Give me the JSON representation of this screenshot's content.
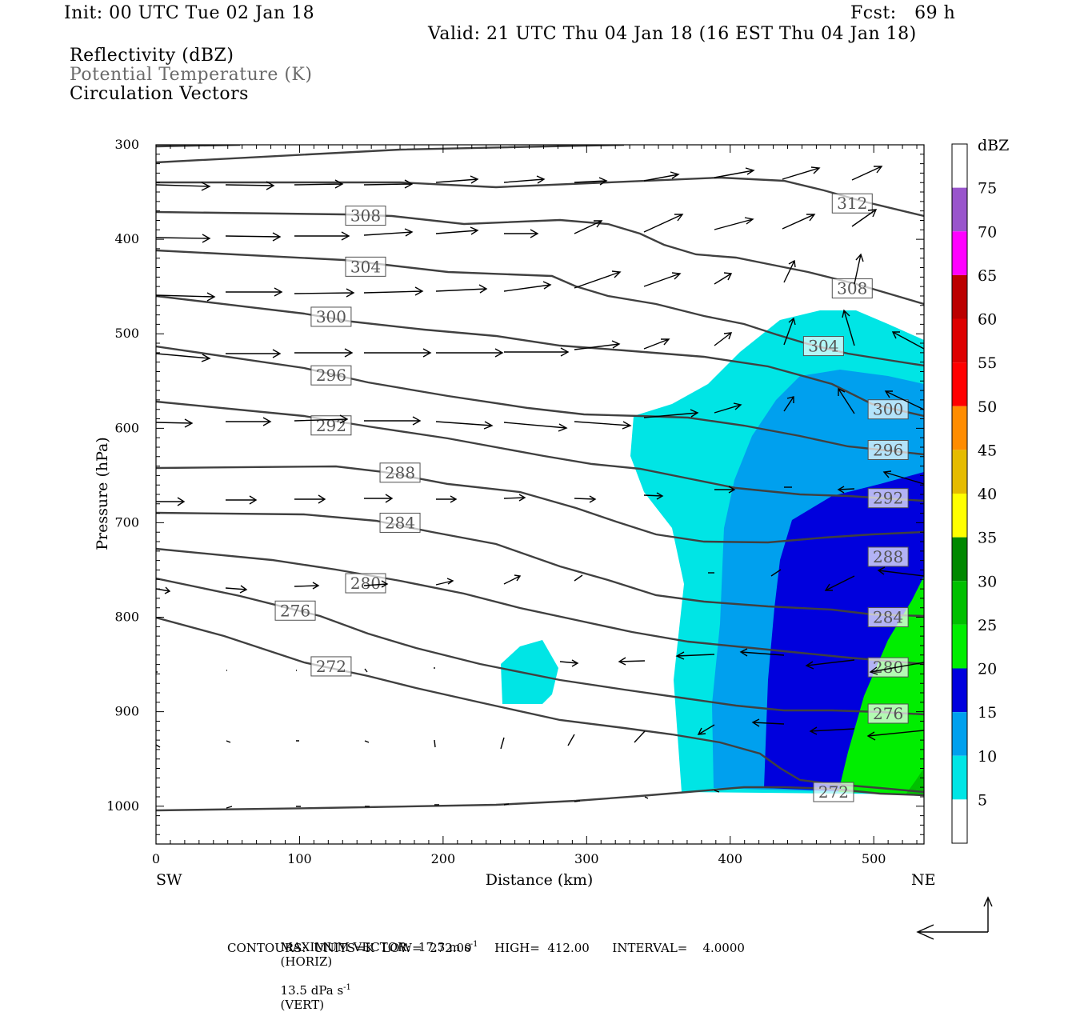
{
  "header": {
    "init": "Init: 00 UTC Tue 02 Jan 18",
    "fcst": "Fcst:   69 h",
    "valid": "Valid: 21 UTC Thu 04 Jan 18 (16 EST Thu 04 Jan 18)",
    "field1": "Reflectivity (dBZ)",
    "field2": "Potential Temperature (K)",
    "field3": "Circulation Vectors"
  },
  "footer": {
    "line1a": "MAXIMUM VECTOR:  17.3 m s",
    "line1b": "(HORIZ)",
    "line1c": "13.5 dPa s",
    "line1d": "(VERT)",
    "sup": "-1",
    "line2": "CONTOURS:  UNITS=K  LOW=  272.00      HIGH=  412.00      INTERVAL=    4.0000"
  },
  "axes": {
    "xlabel": "Distance (km)",
    "ylabel": "Pressure (hPa)",
    "left_end": "SW",
    "right_end": "NE",
    "xticks": [
      "0",
      "100",
      "200",
      "300",
      "400",
      "500"
    ],
    "yticks": [
      "300",
      "400",
      "500",
      "600",
      "700",
      "800",
      "900",
      "1000"
    ]
  },
  "colorbar": {
    "title": "dBZ",
    "labels": [
      "5",
      "10",
      "15",
      "20",
      "25",
      "30",
      "35",
      "40",
      "45",
      "50",
      "55",
      "60",
      "65",
      "70",
      "75"
    ],
    "colors": [
      "#ffffff",
      "#00e5e5",
      "#00a0ee",
      "#0000dd",
      "#00ee00",
      "#00c000",
      "#008800",
      "#ffff00",
      "#e5bb00",
      "#ff8c00",
      "#ff0000",
      "#dd0000",
      "#bb0000",
      "#ff00ff",
      "#9955cc",
      "#ffffff"
    ]
  },
  "chart_data": {
    "type": "contour",
    "x_range_km": [
      0,
      535
    ],
    "y_range_hpa": [
      300,
      1040
    ],
    "y_inverted": true,
    "isentrope_labels": [
      {
        "value": "312",
        "x": 485,
        "p": 362
      },
      {
        "value": "308",
        "x": 146,
        "p": 375
      },
      {
        "value": "308",
        "x": 485,
        "p": 452
      },
      {
        "value": "304",
        "x": 146,
        "p": 429
      },
      {
        "value": "304",
        "x": 465,
        "p": 513
      },
      {
        "value": "300",
        "x": 122,
        "p": 482
      },
      {
        "value": "300",
        "x": 510,
        "p": 580
      },
      {
        "value": "296",
        "x": 122,
        "p": 544
      },
      {
        "value": "296",
        "x": 510,
        "p": 623
      },
      {
        "value": "292",
        "x": 122,
        "p": 597
      },
      {
        "value": "292",
        "x": 510,
        "p": 674
      },
      {
        "value": "288",
        "x": 170,
        "p": 647
      },
      {
        "value": "288",
        "x": 510,
        "p": 736
      },
      {
        "value": "284",
        "x": 170,
        "p": 700
      },
      {
        "value": "284",
        "x": 510,
        "p": 800
      },
      {
        "value": "280",
        "x": 146,
        "p": 764
      },
      {
        "value": "280",
        "x": 510,
        "p": 853
      },
      {
        "value": "276",
        "x": 97,
        "p": 793
      },
      {
        "value": "276",
        "x": 510,
        "p": 902
      },
      {
        "value": "272",
        "x": 122,
        "p": 852
      },
      {
        "value": "272",
        "x": 472,
        "p": 985
      }
    ],
    "reflectivity_thresholds_dbz": [
      5,
      10,
      15,
      20,
      25
    ]
  }
}
